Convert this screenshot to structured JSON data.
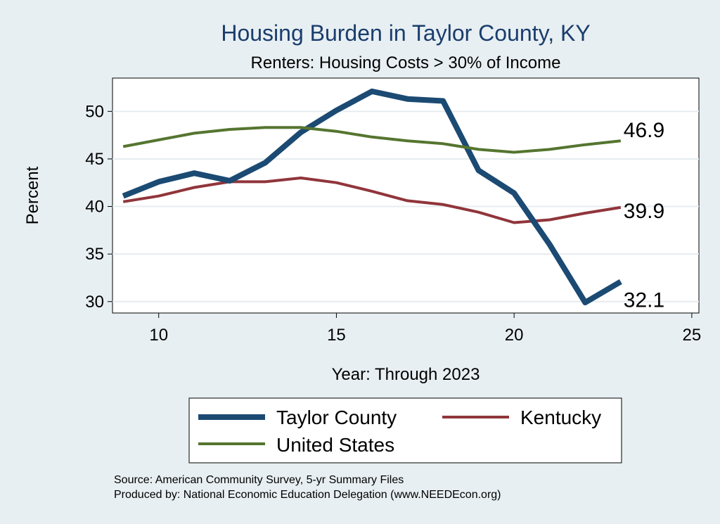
{
  "chart_data": {
    "type": "line",
    "title": "Housing Burden in Taylor County, KY",
    "subtitle": "Renters: Housing Costs > 30% of Income",
    "xlabel": "Year: Through 2023",
    "ylabel": "Percent",
    "xlim": [
      8.7,
      25.2
    ],
    "ylim": [
      28.8,
      53.5
    ],
    "xticks": [
      10,
      15,
      20,
      25
    ],
    "yticks": [
      30,
      35,
      40,
      45,
      50
    ],
    "grid": "horizontal",
    "legend_position": "bottom",
    "series": [
      {
        "name": "Taylor County",
        "color": "#1b4a73",
        "x": [
          9,
          10,
          11,
          12,
          13,
          14,
          15,
          16,
          17,
          18,
          19,
          20,
          21,
          22,
          23
        ],
        "values": [
          41.1,
          42.6,
          43.5,
          42.7,
          44.6,
          47.8,
          50.1,
          52.1,
          51.3,
          51.1,
          43.8,
          41.4,
          36.0,
          29.9,
          32.1
        ],
        "end_label": "32.1"
      },
      {
        "name": "Kentucky",
        "color": "#90353b",
        "x": [
          9,
          10,
          11,
          12,
          13,
          14,
          15,
          16,
          17,
          18,
          19,
          20,
          21,
          22,
          23
        ],
        "values": [
          40.5,
          41.1,
          42.0,
          42.6,
          42.6,
          43.0,
          42.5,
          41.6,
          40.6,
          40.2,
          39.4,
          38.3,
          38.6,
          39.3,
          39.9
        ],
        "end_label": "39.9"
      },
      {
        "name": "United States",
        "color": "#55752f",
        "x": [
          9,
          10,
          11,
          12,
          13,
          14,
          15,
          16,
          17,
          18,
          19,
          20,
          21,
          22,
          23
        ],
        "values": [
          46.3,
          47.0,
          47.7,
          48.1,
          48.3,
          48.3,
          47.9,
          47.3,
          46.9,
          46.6,
          46.0,
          45.7,
          46.0,
          46.5,
          46.9
        ],
        "end_label": "46.9"
      }
    ]
  },
  "source": {
    "line1": "Source: American Community Survey, 5-yr Summary Files",
    "line2": "Produced by: National Economic Education Delegation (www.NEEDEcon.org)"
  }
}
